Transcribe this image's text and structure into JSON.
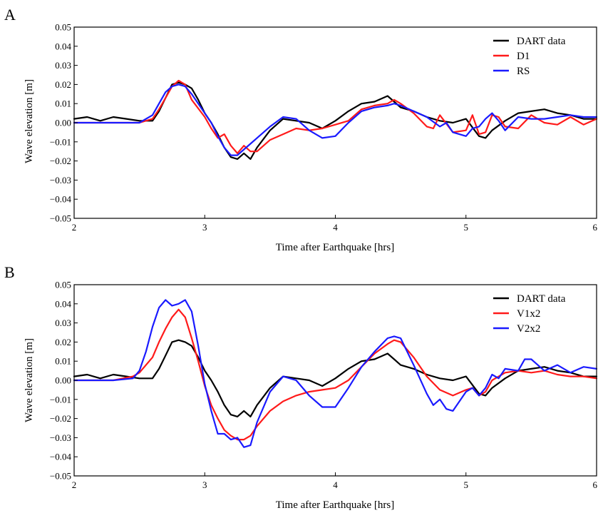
{
  "chart_data": [
    {
      "type": "line",
      "panel_label": "A",
      "xlabel": "Time after Earthquake [hrs]",
      "ylabel": "Wave elevation [m]",
      "xlim": [
        2,
        6
      ],
      "ylim": [
        -0.05,
        0.05
      ],
      "xticks": [
        2,
        3,
        4,
        5,
        6
      ],
      "yticks": [
        0.05,
        0.04,
        0.03,
        0.02,
        0.01,
        0.0,
        -0.01,
        -0.02,
        -0.03,
        -0.04,
        -0.05
      ],
      "xtick_labels": [
        "2",
        "3",
        "4",
        "5",
        "6"
      ],
      "ytick_labels": [
        "0.05",
        "0.04",
        "0.03",
        "0.02",
        "0.01",
        "0.00",
        "−0.01",
        "−0.02",
        "−0.03",
        "−0.04",
        "−0.05"
      ],
      "grid": false,
      "legend_position": "top-right",
      "series": [
        {
          "name": "DART data",
          "color": "#000000",
          "x": [
            2.0,
            2.1,
            2.2,
            2.3,
            2.4,
            2.5,
            2.6,
            2.65,
            2.7,
            2.75,
            2.8,
            2.85,
            2.9,
            2.95,
            3.0,
            3.05,
            3.1,
            3.15,
            3.2,
            3.25,
            3.3,
            3.35,
            3.4,
            3.5,
            3.6,
            3.7,
            3.8,
            3.9,
            4.0,
            4.1,
            4.2,
            4.3,
            4.4,
            4.45,
            4.5,
            4.6,
            4.7,
            4.8,
            4.9,
            5.0,
            5.1,
            5.15,
            5.2,
            5.3,
            5.4,
            5.5,
            5.6,
            5.7,
            5.8,
            5.9,
            6.0
          ],
          "y": [
            0.002,
            0.003,
            0.001,
            0.003,
            0.002,
            0.001,
            0.001,
            0.006,
            0.013,
            0.02,
            0.021,
            0.02,
            0.018,
            0.012,
            0.005,
            0.0,
            -0.006,
            -0.013,
            -0.018,
            -0.019,
            -0.016,
            -0.019,
            -0.013,
            -0.004,
            0.002,
            0.001,
            0.0,
            -0.003,
            0.001,
            0.006,
            0.01,
            0.011,
            0.014,
            0.011,
            0.008,
            0.006,
            0.003,
            0.001,
            0.0,
            0.002,
            -0.007,
            -0.008,
            -0.004,
            0.001,
            0.005,
            0.006,
            0.007,
            0.005,
            0.004,
            0.002,
            0.002
          ]
        },
        {
          "name": "D1",
          "color": "#ff1a1a",
          "x": [
            2.0,
            2.3,
            2.5,
            2.6,
            2.65,
            2.7,
            2.75,
            2.8,
            2.85,
            2.9,
            3.0,
            3.05,
            3.1,
            3.15,
            3.2,
            3.25,
            3.3,
            3.35,
            3.4,
            3.5,
            3.6,
            3.7,
            3.8,
            3.9,
            4.0,
            4.1,
            4.2,
            4.3,
            4.4,
            4.45,
            4.5,
            4.6,
            4.7,
            4.75,
            4.8,
            4.9,
            5.0,
            5.05,
            5.1,
            5.15,
            5.2,
            5.25,
            5.3,
            5.4,
            5.5,
            5.6,
            5.7,
            5.8,
            5.9,
            6.0
          ],
          "y": [
            0.0,
            0.0,
            0.0,
            0.002,
            0.007,
            0.013,
            0.019,
            0.022,
            0.02,
            0.012,
            0.003,
            -0.003,
            -0.008,
            -0.006,
            -0.012,
            -0.016,
            -0.012,
            -0.015,
            -0.015,
            -0.009,
            -0.006,
            -0.003,
            -0.004,
            -0.003,
            -0.001,
            0.001,
            0.007,
            0.009,
            0.01,
            0.012,
            0.01,
            0.005,
            -0.002,
            -0.003,
            0.004,
            -0.005,
            -0.004,
            0.004,
            -0.006,
            -0.005,
            0.004,
            0.003,
            -0.002,
            -0.003,
            0.004,
            0.0,
            -0.001,
            0.003,
            -0.001,
            0.002
          ]
        },
        {
          "name": "RS",
          "color": "#1a1aff",
          "x": [
            2.0,
            2.3,
            2.5,
            2.6,
            2.65,
            2.7,
            2.75,
            2.8,
            2.85,
            2.9,
            3.0,
            3.05,
            3.1,
            3.15,
            3.2,
            3.25,
            3.3,
            3.35,
            3.4,
            3.5,
            3.6,
            3.7,
            3.8,
            3.9,
            4.0,
            4.1,
            4.2,
            4.3,
            4.4,
            4.45,
            4.5,
            4.6,
            4.7,
            4.8,
            4.85,
            4.9,
            5.0,
            5.05,
            5.1,
            5.15,
            5.2,
            5.25,
            5.3,
            5.4,
            5.5,
            5.6,
            5.7,
            5.8,
            5.9,
            6.0
          ],
          "y": [
            0.0,
            0.0,
            0.0,
            0.004,
            0.01,
            0.016,
            0.019,
            0.02,
            0.019,
            0.015,
            0.005,
            0.0,
            -0.007,
            -0.013,
            -0.017,
            -0.017,
            -0.014,
            -0.011,
            -0.008,
            -0.002,
            0.003,
            0.002,
            -0.004,
            -0.008,
            -0.007,
            0.0,
            0.006,
            0.008,
            0.009,
            0.01,
            0.009,
            0.006,
            0.003,
            -0.002,
            0.0,
            -0.005,
            -0.007,
            -0.003,
            -0.002,
            0.002,
            0.005,
            0.001,
            -0.004,
            0.003,
            0.002,
            0.002,
            0.003,
            0.004,
            0.003,
            0.003
          ]
        }
      ]
    },
    {
      "type": "line",
      "panel_label": "B",
      "xlabel": "Time after Earthquake [hrs]",
      "ylabel": "Wave elevation [m]",
      "xlim": [
        2,
        6
      ],
      "ylim": [
        -0.05,
        0.05
      ],
      "xticks": [
        2,
        3,
        4,
        5,
        6
      ],
      "yticks": [
        0.05,
        0.04,
        0.03,
        0.02,
        0.01,
        0.0,
        -0.01,
        -0.02,
        -0.03,
        -0.04,
        -0.05
      ],
      "xtick_labels": [
        "2",
        "3",
        "4",
        "5",
        "6"
      ],
      "ytick_labels": [
        "0.05",
        "0.04",
        "0.03",
        "0.02",
        "0.01",
        "0.00",
        "−0.01",
        "−0.02",
        "−0.03",
        "−0.04",
        "−0.05"
      ],
      "grid": false,
      "legend_position": "top-right",
      "series": [
        {
          "name": "DART data",
          "color": "#000000",
          "x": [
            2.0,
            2.1,
            2.2,
            2.3,
            2.4,
            2.5,
            2.6,
            2.65,
            2.7,
            2.75,
            2.8,
            2.85,
            2.9,
            2.95,
            3.0,
            3.05,
            3.1,
            3.15,
            3.2,
            3.25,
            3.3,
            3.35,
            3.4,
            3.5,
            3.6,
            3.7,
            3.8,
            3.9,
            4.0,
            4.1,
            4.2,
            4.3,
            4.4,
            4.45,
            4.5,
            4.6,
            4.7,
            4.8,
            4.9,
            5.0,
            5.1,
            5.15,
            5.2,
            5.3,
            5.4,
            5.5,
            5.6,
            5.7,
            5.8,
            5.9,
            6.0
          ],
          "y": [
            0.002,
            0.003,
            0.001,
            0.003,
            0.002,
            0.001,
            0.001,
            0.006,
            0.013,
            0.02,
            0.021,
            0.02,
            0.018,
            0.012,
            0.005,
            0.0,
            -0.006,
            -0.013,
            -0.018,
            -0.019,
            -0.016,
            -0.019,
            -0.013,
            -0.004,
            0.002,
            0.001,
            0.0,
            -0.003,
            0.001,
            0.006,
            0.01,
            0.011,
            0.014,
            0.011,
            0.008,
            0.006,
            0.003,
            0.001,
            0.0,
            0.002,
            -0.007,
            -0.008,
            -0.004,
            0.001,
            0.005,
            0.006,
            0.007,
            0.005,
            0.004,
            0.002,
            0.002
          ]
        },
        {
          "name": "V1x2",
          "color": "#ff1a1a",
          "x": [
            2.0,
            2.3,
            2.45,
            2.5,
            2.6,
            2.65,
            2.7,
            2.75,
            2.8,
            2.85,
            2.9,
            2.95,
            3.0,
            3.05,
            3.1,
            3.15,
            3.2,
            3.25,
            3.3,
            3.35,
            3.4,
            3.5,
            3.6,
            3.7,
            3.8,
            3.9,
            4.0,
            4.1,
            4.2,
            4.3,
            4.4,
            4.45,
            4.5,
            4.6,
            4.7,
            4.8,
            4.9,
            5.0,
            5.05,
            5.1,
            5.15,
            5.2,
            5.3,
            5.4,
            5.5,
            5.6,
            5.7,
            5.8,
            5.9,
            6.0
          ],
          "y": [
            0.0,
            0.0,
            0.002,
            0.004,
            0.012,
            0.02,
            0.027,
            0.033,
            0.037,
            0.033,
            0.022,
            0.01,
            -0.003,
            -0.013,
            -0.02,
            -0.026,
            -0.029,
            -0.031,
            -0.031,
            -0.029,
            -0.024,
            -0.016,
            -0.011,
            -0.008,
            -0.006,
            -0.005,
            -0.004,
            0.0,
            0.007,
            0.014,
            0.019,
            0.021,
            0.02,
            0.012,
            0.002,
            -0.005,
            -0.008,
            -0.005,
            -0.004,
            -0.008,
            -0.006,
            0.0,
            0.004,
            0.005,
            0.004,
            0.005,
            0.003,
            0.002,
            0.002,
            0.001
          ]
        },
        {
          "name": "V2x2",
          "color": "#1a1aff",
          "x": [
            2.0,
            2.3,
            2.45,
            2.5,
            2.55,
            2.6,
            2.65,
            2.7,
            2.75,
            2.8,
            2.85,
            2.9,
            2.95,
            3.0,
            3.05,
            3.1,
            3.15,
            3.2,
            3.25,
            3.3,
            3.35,
            3.4,
            3.5,
            3.6,
            3.7,
            3.8,
            3.9,
            4.0,
            4.1,
            4.2,
            4.3,
            4.4,
            4.45,
            4.5,
            4.6,
            4.7,
            4.75,
            4.8,
            4.85,
            4.9,
            5.0,
            5.05,
            5.1,
            5.15,
            5.2,
            5.25,
            5.3,
            5.4,
            5.45,
            5.5,
            5.6,
            5.7,
            5.8,
            5.9,
            6.0
          ],
          "y": [
            0.0,
            0.0,
            0.001,
            0.005,
            0.015,
            0.028,
            0.038,
            0.042,
            0.039,
            0.04,
            0.042,
            0.036,
            0.018,
            -0.002,
            -0.016,
            -0.028,
            -0.028,
            -0.031,
            -0.03,
            -0.035,
            -0.034,
            -0.022,
            -0.006,
            0.002,
            0.0,
            -0.008,
            -0.014,
            -0.014,
            -0.004,
            0.007,
            0.015,
            0.022,
            0.023,
            0.022,
            0.008,
            -0.007,
            -0.013,
            -0.01,
            -0.015,
            -0.016,
            -0.006,
            -0.004,
            -0.008,
            -0.004,
            0.003,
            0.001,
            0.006,
            0.005,
            0.011,
            0.011,
            0.005,
            0.008,
            0.004,
            0.007,
            0.006
          ]
        }
      ]
    }
  ]
}
